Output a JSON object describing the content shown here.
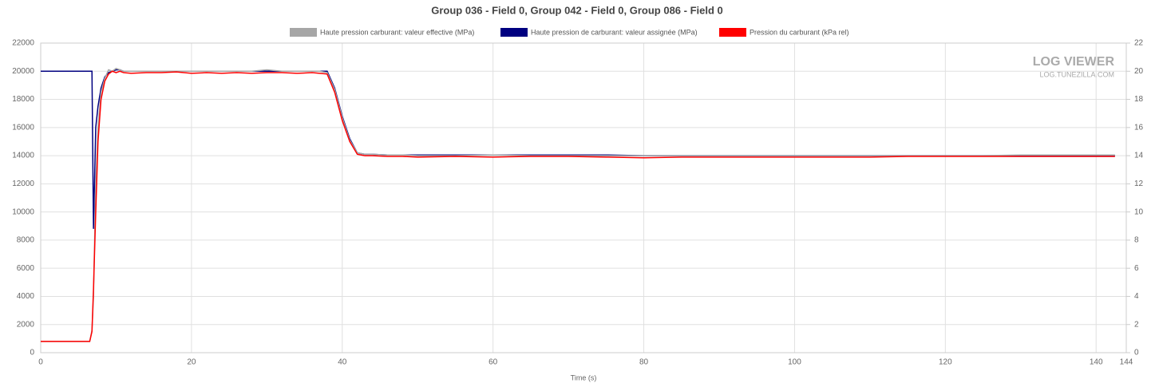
{
  "chart_data": {
    "type": "line",
    "title": "Group 036 - Field 0, Group 042 - Field 0, Group 086 - Field 0",
    "x_label": "Time (s)",
    "watermark": [
      "LOG VIEWER",
      "LOG.TUNEZILLA.COM"
    ],
    "x": [
      0,
      6,
      6.5,
      6.8,
      7,
      7.3,
      7.6,
      8,
      8.5,
      9,
      9.5,
      10,
      10.5,
      11,
      12,
      14,
      16,
      18,
      20,
      22,
      24,
      26,
      28,
      30,
      32,
      34,
      36,
      37,
      38,
      39,
      40,
      41,
      42,
      43,
      44,
      46,
      48,
      50,
      55,
      60,
      65,
      70,
      75,
      80,
      85,
      90,
      95,
      100,
      105,
      110,
      115,
      120,
      125,
      130,
      135,
      140,
      142.5
    ],
    "series": [
      {
        "name": "Haute pression carburant: valeur effective (MPa)",
        "color": "#a6a6a6",
        "axis": "y2",
        "values": [
          0.8,
          0.8,
          0.8,
          1.6,
          4,
          12,
          16,
          18.5,
          19.5,
          20.1,
          20,
          20.2,
          20.1,
          20,
          20,
          20,
          20,
          20,
          20,
          20,
          20,
          20,
          20,
          20.1,
          20,
          20,
          20,
          20,
          19.9,
          18.7,
          16.7,
          15.1,
          14.2,
          14.1,
          14.1,
          14.05,
          14.05,
          14,
          14,
          14.05,
          14,
          14,
          14,
          14,
          14,
          14,
          14,
          14,
          14,
          14,
          14,
          14,
          14,
          14.05,
          14.05,
          14.05,
          14.05
        ]
      },
      {
        "name": "Haute pression de carburant: valeur assignée (MPa)",
        "color": "#000080",
        "axis": "y2",
        "values": [
          20,
          20,
          20,
          20,
          8.8,
          16,
          17.5,
          18.8,
          19.6,
          19.9,
          20,
          20.1,
          20.1,
          20,
          20,
          20,
          20,
          20,
          20,
          20,
          20,
          20,
          20,
          20,
          20,
          20,
          20,
          20,
          20,
          18.8,
          16.8,
          15.2,
          14.2,
          14.1,
          14.1,
          14.05,
          14.05,
          14.05,
          14.05,
          14.05,
          14.05,
          14.05,
          14.05,
          14,
          14,
          14,
          14,
          14,
          14,
          14,
          14,
          14,
          14,
          14,
          14,
          14,
          14
        ]
      },
      {
        "name": "Pression du carburant (kPa rel)",
        "color": "#ff0000",
        "values": [
          800,
          800,
          800,
          1500,
          4500,
          10000,
          15000,
          18000,
          19300,
          19800,
          20000,
          19900,
          20000,
          19900,
          19850,
          19900,
          19900,
          19950,
          19850,
          19900,
          19850,
          19900,
          19850,
          19900,
          19900,
          19850,
          19900,
          19850,
          19800,
          18500,
          16500,
          15000,
          14100,
          14000,
          14000,
          13950,
          13950,
          13900,
          13950,
          13900,
          13950,
          13950,
          13900,
          13850,
          13900,
          13900,
          13900,
          13900,
          13900,
          13900,
          13950,
          13950,
          13950,
          13950,
          13950,
          13950,
          13950
        ]
      }
    ],
    "xlim": [
      0,
      144
    ],
    "xticks": [
      0,
      20,
      40,
      60,
      80,
      100,
      120,
      140,
      144
    ],
    "ylim": [
      0,
      22000
    ],
    "yticks": [
      0,
      2000,
      4000,
      6000,
      8000,
      10000,
      12000,
      14000,
      16000,
      18000,
      20000,
      22000
    ],
    "y2lim": [
      0,
      22
    ],
    "y2ticks": [
      0,
      2,
      4,
      6,
      8,
      10,
      12,
      14,
      16,
      18,
      20,
      22
    ],
    "grid": true
  }
}
